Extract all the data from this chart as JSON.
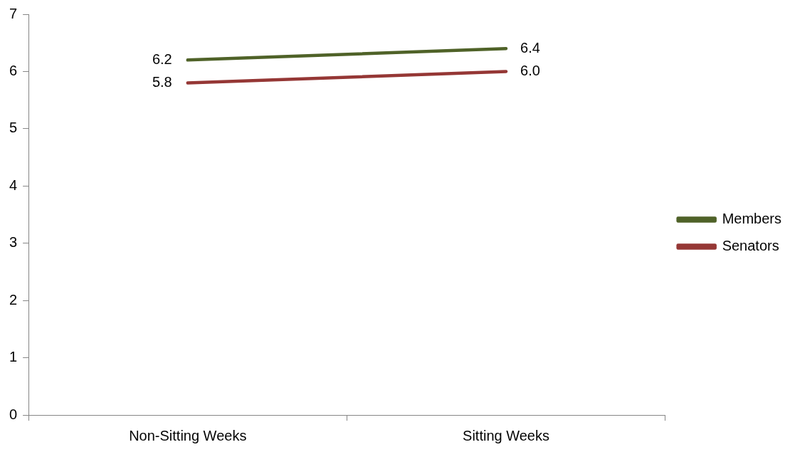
{
  "chart_data": {
    "type": "line",
    "categories": [
      "Non-Sitting Weeks",
      "Sitting Weeks"
    ],
    "series": [
      {
        "name": "Members",
        "color": "#4f6228",
        "values": [
          6.2,
          6.4
        ],
        "value_labels": [
          "6.2",
          "6.4"
        ]
      },
      {
        "name": "Senators",
        "color": "#953735",
        "values": [
          5.8,
          6.0
        ],
        "value_labels": [
          "5.8",
          "6.0"
        ]
      }
    ],
    "ylim": [
      0,
      7
    ],
    "yticks": [
      0,
      1,
      2,
      3,
      4,
      5,
      6,
      7
    ],
    "grid": false,
    "legend": "right",
    "marker": "none",
    "line_style": "solid"
  }
}
